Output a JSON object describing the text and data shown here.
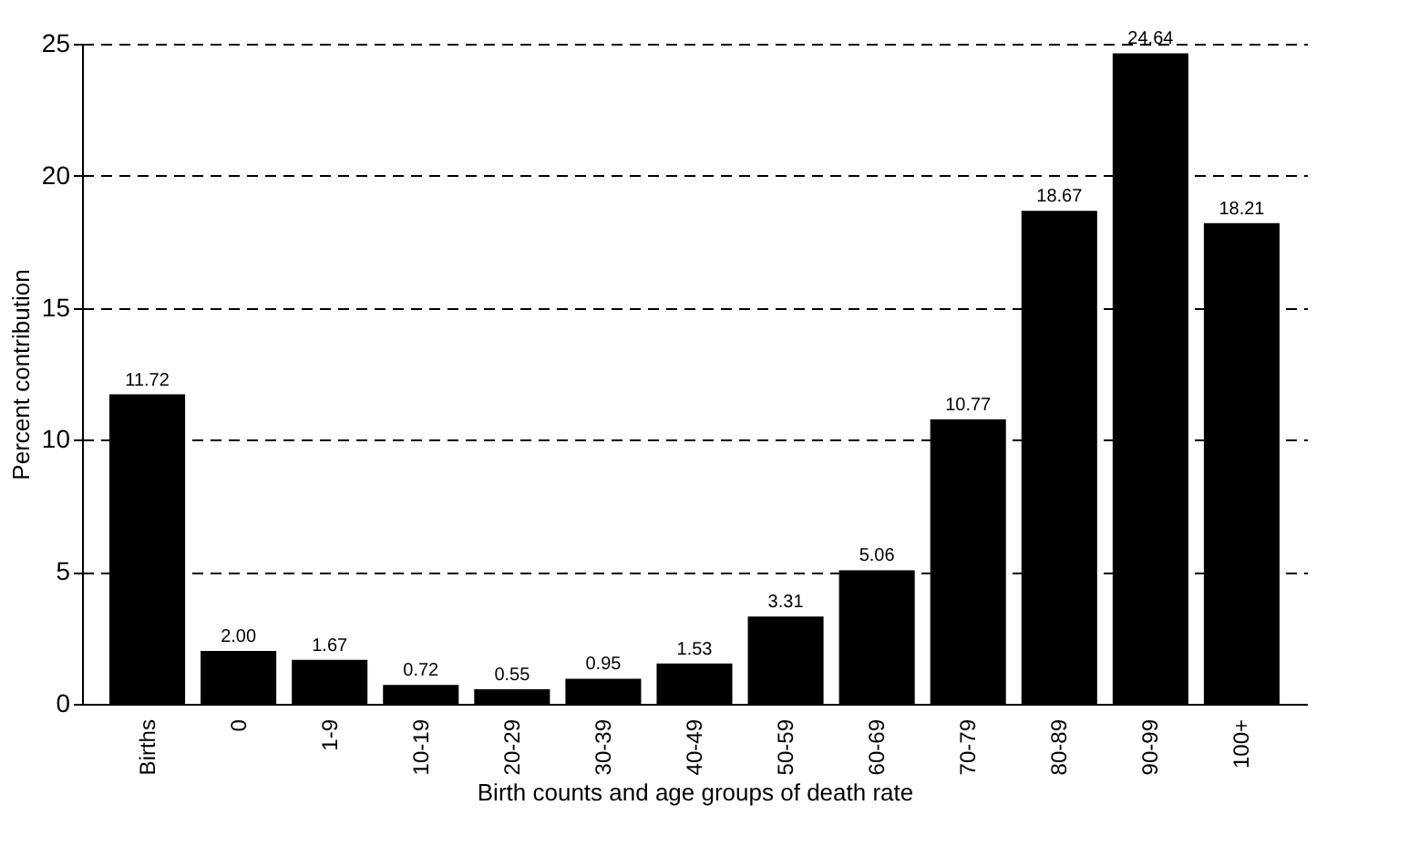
{
  "chart_data": {
    "type": "bar",
    "xlabel": "Birth counts and age groups of death rate",
    "ylabel": "Percent contribution",
    "categories": [
      "Births",
      "0",
      "1-9",
      "10-19",
      "20-29",
      "30-39",
      "40-49",
      "50-59",
      "60-69",
      "70-79",
      "80-89",
      "90-99",
      "100+"
    ],
    "values": [
      11.72,
      2.0,
      1.67,
      0.72,
      0.55,
      0.95,
      1.53,
      3.31,
      5.06,
      10.77,
      18.67,
      24.64,
      18.21
    ],
    "value_labels": [
      "11.72",
      "2.00",
      "1.67",
      "0.72",
      "0.55",
      "0.95",
      "1.53",
      "3.31",
      "5.06",
      "10.77",
      "18.67",
      "24.64",
      "18.21"
    ],
    "color": "#000000",
    "ylim": [
      0,
      25
    ],
    "yticks": [
      0,
      5,
      10,
      15,
      20,
      25
    ],
    "grid": "y"
  }
}
